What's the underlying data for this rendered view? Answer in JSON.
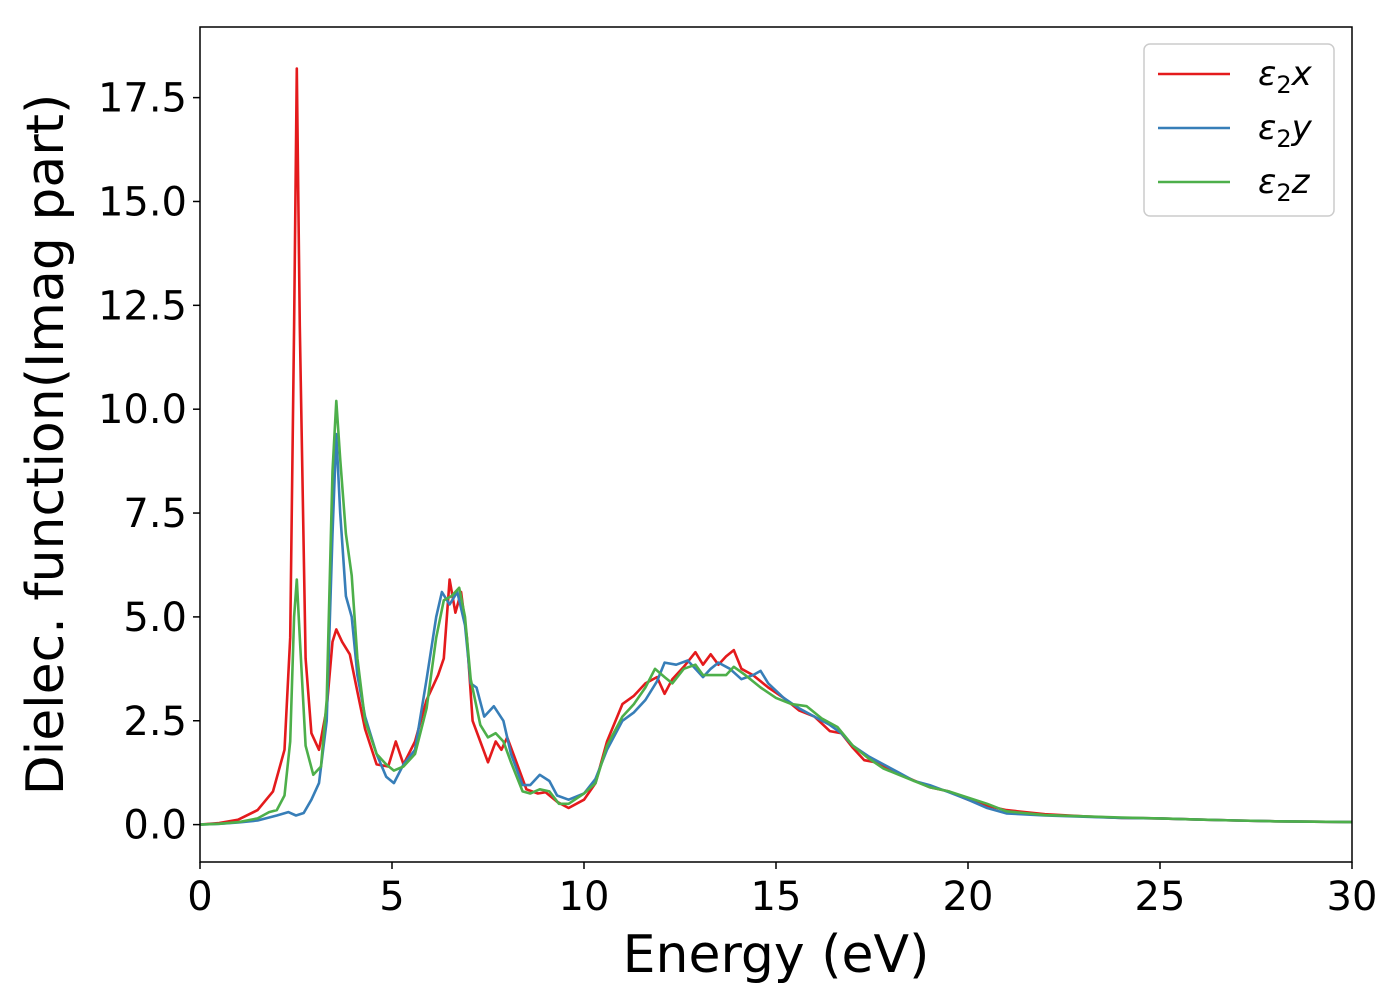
{
  "chart_data": {
    "type": "line",
    "xlabel": "Energy (eV)",
    "ylabel": "Dielec. function(Imag part)",
    "xlim": [
      0,
      30
    ],
    "ylim": [
      -0.9,
      19.2
    ],
    "xticks": [
      0,
      5,
      10,
      15,
      20,
      25,
      30
    ],
    "xtick_labels": [
      "0",
      "5",
      "10",
      "15",
      "20",
      "25",
      "30"
    ],
    "yticks": [
      0.0,
      2.5,
      5.0,
      7.5,
      10.0,
      12.5,
      15.0,
      17.5
    ],
    "ytick_labels": [
      "0.0",
      "2.5",
      "5.0",
      "7.5",
      "10.0",
      "12.5",
      "15.0",
      "17.5"
    ],
    "grid": false,
    "legend_position": "top-right",
    "series": [
      {
        "name": "ε₂x",
        "legend_base": "ε",
        "legend_sub": "2",
        "legend_var": "x",
        "color": "#e41a1c",
        "points": [
          [
            0,
            0
          ],
          [
            0.5,
            0.04
          ],
          [
            1,
            0.12
          ],
          [
            1.5,
            0.35
          ],
          [
            1.9,
            0.8
          ],
          [
            2.2,
            1.8
          ],
          [
            2.35,
            4.5
          ],
          [
            2.45,
            12
          ],
          [
            2.52,
            18.2
          ],
          [
            2.6,
            12
          ],
          [
            2.75,
            4
          ],
          [
            2.9,
            2.2
          ],
          [
            3.1,
            1.8
          ],
          [
            3.3,
            2.8
          ],
          [
            3.45,
            4.4
          ],
          [
            3.55,
            4.7
          ],
          [
            3.7,
            4.4
          ],
          [
            3.9,
            4.1
          ],
          [
            4.1,
            3.2
          ],
          [
            4.3,
            2.3
          ],
          [
            4.6,
            1.45
          ],
          [
            4.9,
            1.4
          ],
          [
            5.1,
            2.0
          ],
          [
            5.3,
            1.45
          ],
          [
            5.6,
            2.0
          ],
          [
            5.9,
            3.0
          ],
          [
            6.2,
            3.6
          ],
          [
            6.35,
            4.0
          ],
          [
            6.5,
            5.9
          ],
          [
            6.65,
            5.1
          ],
          [
            6.8,
            5.6
          ],
          [
            6.95,
            4.5
          ],
          [
            7.1,
            2.5
          ],
          [
            7.3,
            2.0
          ],
          [
            7.5,
            1.5
          ],
          [
            7.7,
            2.0
          ],
          [
            7.85,
            1.8
          ],
          [
            8.0,
            2.1
          ],
          [
            8.2,
            1.6
          ],
          [
            8.5,
            0.85
          ],
          [
            8.8,
            0.75
          ],
          [
            9.0,
            0.78
          ],
          [
            9.3,
            0.55
          ],
          [
            9.6,
            0.4
          ],
          [
            10.0,
            0.6
          ],
          [
            10.3,
            1.0
          ],
          [
            10.6,
            2.0
          ],
          [
            11.0,
            2.9
          ],
          [
            11.3,
            3.1
          ],
          [
            11.6,
            3.4
          ],
          [
            11.9,
            3.55
          ],
          [
            12.1,
            3.15
          ],
          [
            12.3,
            3.5
          ],
          [
            12.6,
            3.8
          ],
          [
            12.9,
            4.15
          ],
          [
            13.1,
            3.85
          ],
          [
            13.3,
            4.1
          ],
          [
            13.5,
            3.85
          ],
          [
            13.7,
            4.05
          ],
          [
            13.9,
            4.2
          ],
          [
            14.1,
            3.75
          ],
          [
            14.4,
            3.6
          ],
          [
            14.8,
            3.3
          ],
          [
            15.2,
            3.05
          ],
          [
            15.6,
            2.75
          ],
          [
            16.0,
            2.6
          ],
          [
            16.4,
            2.25
          ],
          [
            16.7,
            2.2
          ],
          [
            17.0,
            1.85
          ],
          [
            17.3,
            1.55
          ],
          [
            17.6,
            1.5
          ],
          [
            18.0,
            1.3
          ],
          [
            18.5,
            1.1
          ],
          [
            19.0,
            0.9
          ],
          [
            19.5,
            0.8
          ],
          [
            20.0,
            0.6
          ],
          [
            20.5,
            0.45
          ],
          [
            21.0,
            0.35
          ],
          [
            22.0,
            0.25
          ],
          [
            23.0,
            0.2
          ],
          [
            24.0,
            0.16
          ],
          [
            25.0,
            0.15
          ],
          [
            26.0,
            0.12
          ],
          [
            27.0,
            0.1
          ],
          [
            28.0,
            0.08
          ],
          [
            29.0,
            0.07
          ],
          [
            30.0,
            0.06
          ]
        ]
      },
      {
        "name": "ε₂y",
        "legend_base": "ε",
        "legend_sub": "2",
        "legend_var": "y",
        "color": "#377eb8",
        "points": [
          [
            0,
            0
          ],
          [
            0.5,
            0.02
          ],
          [
            1,
            0.05
          ],
          [
            1.5,
            0.1
          ],
          [
            2.0,
            0.22
          ],
          [
            2.3,
            0.3
          ],
          [
            2.5,
            0.22
          ],
          [
            2.7,
            0.28
          ],
          [
            2.9,
            0.6
          ],
          [
            3.1,
            1.0
          ],
          [
            3.3,
            2.5
          ],
          [
            3.45,
            7.0
          ],
          [
            3.55,
            9.4
          ],
          [
            3.65,
            7.5
          ],
          [
            3.8,
            5.5
          ],
          [
            3.95,
            5.0
          ],
          [
            4.1,
            3.6
          ],
          [
            4.3,
            2.6
          ],
          [
            4.6,
            1.7
          ],
          [
            4.85,
            1.15
          ],
          [
            5.05,
            1.0
          ],
          [
            5.3,
            1.45
          ],
          [
            5.6,
            1.8
          ],
          [
            5.9,
            3.5
          ],
          [
            6.15,
            5.0
          ],
          [
            6.3,
            5.6
          ],
          [
            6.5,
            5.3
          ],
          [
            6.7,
            5.6
          ],
          [
            6.9,
            4.8
          ],
          [
            7.05,
            3.4
          ],
          [
            7.2,
            3.3
          ],
          [
            7.4,
            2.6
          ],
          [
            7.65,
            2.85
          ],
          [
            7.9,
            2.5
          ],
          [
            8.1,
            1.7
          ],
          [
            8.4,
            0.95
          ],
          [
            8.6,
            0.95
          ],
          [
            8.85,
            1.2
          ],
          [
            9.1,
            1.05
          ],
          [
            9.3,
            0.7
          ],
          [
            9.6,
            0.6
          ],
          [
            10.0,
            0.75
          ],
          [
            10.3,
            1.1
          ],
          [
            10.6,
            1.8
          ],
          [
            11.0,
            2.5
          ],
          [
            11.3,
            2.7
          ],
          [
            11.6,
            3.0
          ],
          [
            11.9,
            3.45
          ],
          [
            12.1,
            3.9
          ],
          [
            12.4,
            3.85
          ],
          [
            12.7,
            3.95
          ],
          [
            12.9,
            3.75
          ],
          [
            13.1,
            3.55
          ],
          [
            13.3,
            3.75
          ],
          [
            13.5,
            3.9
          ],
          [
            13.8,
            3.75
          ],
          [
            14.1,
            3.5
          ],
          [
            14.4,
            3.6
          ],
          [
            14.6,
            3.7
          ],
          [
            14.8,
            3.4
          ],
          [
            15.2,
            3.05
          ],
          [
            15.6,
            2.8
          ],
          [
            16.0,
            2.6
          ],
          [
            16.4,
            2.4
          ],
          [
            16.7,
            2.2
          ],
          [
            17.0,
            1.9
          ],
          [
            17.4,
            1.65
          ],
          [
            17.8,
            1.45
          ],
          [
            18.2,
            1.25
          ],
          [
            18.6,
            1.05
          ],
          [
            19.0,
            0.95
          ],
          [
            19.5,
            0.78
          ],
          [
            20.0,
            0.6
          ],
          [
            20.5,
            0.4
          ],
          [
            21.0,
            0.27
          ],
          [
            22.0,
            0.22
          ],
          [
            23.0,
            0.19
          ],
          [
            24.0,
            0.16
          ],
          [
            25.0,
            0.15
          ],
          [
            26.0,
            0.12
          ],
          [
            27.0,
            0.1
          ],
          [
            28.0,
            0.08
          ],
          [
            29.0,
            0.07
          ],
          [
            30.0,
            0.06
          ]
        ]
      },
      {
        "name": "ε₂z",
        "legend_base": "ε",
        "legend_sub": "2",
        "legend_var": "z",
        "color": "#4daf4a",
        "points": [
          [
            0,
            0
          ],
          [
            0.5,
            0.02
          ],
          [
            1,
            0.06
          ],
          [
            1.5,
            0.15
          ],
          [
            1.8,
            0.3
          ],
          [
            2.0,
            0.35
          ],
          [
            2.2,
            0.7
          ],
          [
            2.35,
            2.0
          ],
          [
            2.45,
            5.0
          ],
          [
            2.52,
            5.9
          ],
          [
            2.6,
            4.5
          ],
          [
            2.75,
            1.9
          ],
          [
            2.95,
            1.2
          ],
          [
            3.15,
            1.4
          ],
          [
            3.3,
            3.0
          ],
          [
            3.45,
            8.5
          ],
          [
            3.55,
            10.2
          ],
          [
            3.65,
            8.8
          ],
          [
            3.8,
            7.0
          ],
          [
            3.95,
            6.0
          ],
          [
            4.1,
            4.0
          ],
          [
            4.3,
            2.5
          ],
          [
            4.6,
            1.7
          ],
          [
            4.85,
            1.45
          ],
          [
            5.05,
            1.3
          ],
          [
            5.3,
            1.4
          ],
          [
            5.6,
            1.7
          ],
          [
            5.9,
            2.8
          ],
          [
            6.15,
            4.5
          ],
          [
            6.35,
            5.4
          ],
          [
            6.55,
            5.5
          ],
          [
            6.75,
            5.7
          ],
          [
            6.9,
            5.0
          ],
          [
            7.05,
            3.5
          ],
          [
            7.3,
            2.4
          ],
          [
            7.5,
            2.1
          ],
          [
            7.7,
            2.2
          ],
          [
            7.9,
            2.0
          ],
          [
            8.1,
            1.5
          ],
          [
            8.4,
            0.8
          ],
          [
            8.6,
            0.75
          ],
          [
            8.85,
            0.85
          ],
          [
            9.1,
            0.8
          ],
          [
            9.35,
            0.5
          ],
          [
            9.6,
            0.5
          ],
          [
            10.0,
            0.75
          ],
          [
            10.3,
            1.0
          ],
          [
            10.6,
            1.9
          ],
          [
            11.0,
            2.6
          ],
          [
            11.3,
            2.9
          ],
          [
            11.6,
            3.3
          ],
          [
            11.85,
            3.75
          ],
          [
            12.1,
            3.55
          ],
          [
            12.3,
            3.4
          ],
          [
            12.6,
            3.75
          ],
          [
            12.9,
            3.85
          ],
          [
            13.1,
            3.6
          ],
          [
            13.4,
            3.6
          ],
          [
            13.7,
            3.6
          ],
          [
            13.9,
            3.8
          ],
          [
            14.2,
            3.6
          ],
          [
            14.6,
            3.3
          ],
          [
            15.0,
            3.05
          ],
          [
            15.4,
            2.9
          ],
          [
            15.8,
            2.85
          ],
          [
            16.2,
            2.55
          ],
          [
            16.6,
            2.35
          ],
          [
            17.0,
            1.9
          ],
          [
            17.4,
            1.6
          ],
          [
            17.8,
            1.35
          ],
          [
            18.2,
            1.2
          ],
          [
            18.6,
            1.05
          ],
          [
            19.0,
            0.9
          ],
          [
            19.5,
            0.8
          ],
          [
            20.0,
            0.65
          ],
          [
            20.5,
            0.5
          ],
          [
            21.0,
            0.32
          ],
          [
            22.0,
            0.23
          ],
          [
            23.0,
            0.2
          ],
          [
            24.0,
            0.17
          ],
          [
            25.0,
            0.15
          ],
          [
            26.0,
            0.12
          ],
          [
            27.0,
            0.1
          ],
          [
            28.0,
            0.08
          ],
          [
            29.0,
            0.07
          ],
          [
            30.0,
            0.06
          ]
        ]
      }
    ]
  }
}
